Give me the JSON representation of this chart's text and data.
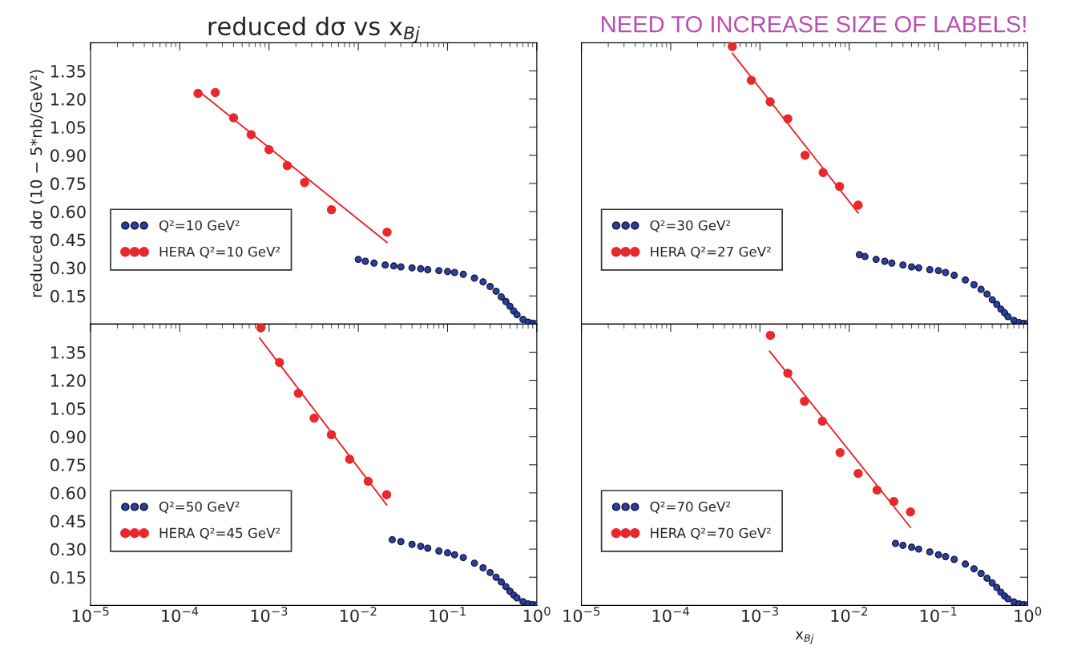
{
  "chart_data": [
    {
      "type": "scatter",
      "title": "reduced dσ vs x$_{Bj}$",
      "ylabel": "reduced dσ (10 − 5*nb/GeV²)",
      "tick_labels": "y",
      "legend": "left",
      "log": "x",
      "marker": "circle",
      "xlim": [
        1e-05,
        1
      ],
      "xticks": [
        {
          "value": 1e-05,
          "label": null
        },
        {
          "value": 0.0001,
          "label": null
        },
        {
          "value": 0.001,
          "label": null
        },
        {
          "value": 0.01,
          "label": null
        },
        {
          "value": 0.1,
          "label": null
        },
        {
          "value": 1,
          "label": null
        }
      ],
      "ylim": [
        0,
        1.5
      ],
      "yticks": [
        0.15,
        {
          "value": 0.3,
          "label": "0.30"
        },
        0.45,
        {
          "value": 0.6,
          "label": "0.60"
        },
        0.75,
        {
          "value": 0.9,
          "label": "0.90"
        },
        1.05,
        {
          "value": 1.2,
          "label": "1.20"
        },
        1.35
      ],
      "series": [
        {
          "name": "Q²=10 GeV²",
          "color": "#2b3f9c",
          "x": [
            0.01,
            0.012,
            0.015,
            0.02,
            0.025,
            0.03,
            0.04,
            0.05,
            0.06,
            0.08,
            0.1,
            0.12,
            0.15,
            0.2,
            0.25,
            0.3,
            0.35,
            0.4,
            0.45,
            0.5,
            0.55,
            0.6,
            0.7,
            0.8,
            0.9,
            1.0
          ],
          "values": [
            0.345,
            0.335,
            0.325,
            0.315,
            0.31,
            0.305,
            0.3,
            0.295,
            0.29,
            0.285,
            0.28,
            0.275,
            0.265,
            0.245,
            0.225,
            0.2,
            0.175,
            0.145,
            0.12,
            0.095,
            0.07,
            0.05,
            0.025,
            0.01,
            0.005,
            0.003
          ]
        },
        {
          "name": "HERA Q²=10 GeV²",
          "color": "#e8282b",
          "x": [
            0.00016,
            0.00025,
            0.0004,
            0.00063,
            0.001,
            0.0016,
            0.0025,
            0.005,
            0.021
          ],
          "values": [
            1.23,
            1.235,
            1.1,
            1.01,
            0.93,
            0.845,
            0.755,
            0.61,
            0.49
          ]
        },
        {
          "type": "line",
          "marker": "none",
          "color": "#e8282b",
          "x": [
            0.00017,
            0.021
          ],
          "values": [
            1.235,
            0.435
          ]
        }
      ]
    },
    {
      "type": "scatter",
      "tick_labels": false,
      "legend": "left",
      "log": "x",
      "marker": "circle",
      "annotations": [
        "NEED TO INCREASE SIZE OF LABELS!"
      ],
      "xlim": [
        1e-05,
        1
      ],
      "xticks": [
        {
          "value": 1e-05,
          "label": null
        },
        {
          "value": 0.0001,
          "label": null
        },
        {
          "value": 0.001,
          "label": null
        },
        {
          "value": 0.01,
          "label": null
        },
        {
          "value": 0.1,
          "label": null
        },
        {
          "value": 1,
          "label": null
        }
      ],
      "ylim": [
        0,
        1.5
      ],
      "yticks": [
        {
          "value": 0.15,
          "label": null
        },
        {
          "value": 0.3,
          "label": null
        },
        {
          "value": 0.45,
          "label": null
        },
        {
          "value": 0.6,
          "label": null
        },
        {
          "value": 0.75,
          "label": null
        },
        {
          "value": 0.9,
          "label": null
        },
        {
          "value": 1.05,
          "label": null
        },
        {
          "value": 1.2,
          "label": null
        },
        {
          "value": 1.35,
          "label": null
        }
      ],
      "series": [
        {
          "name": "Q²=30 GeV²",
          "color": "#2b3f9c",
          "x": [
            0.013,
            0.015,
            0.02,
            0.025,
            0.03,
            0.04,
            0.05,
            0.06,
            0.08,
            0.1,
            0.12,
            0.15,
            0.2,
            0.25,
            0.3,
            0.35,
            0.4,
            0.45,
            0.5,
            0.55,
            0.6,
            0.7,
            0.8,
            0.9,
            1.0
          ],
          "values": [
            0.37,
            0.36,
            0.345,
            0.335,
            0.325,
            0.315,
            0.305,
            0.3,
            0.29,
            0.285,
            0.275,
            0.26,
            0.235,
            0.21,
            0.185,
            0.16,
            0.13,
            0.105,
            0.08,
            0.06,
            0.04,
            0.02,
            0.008,
            0.004,
            0.003
          ]
        },
        {
          "name": "HERA Q²=27 GeV²",
          "color": "#e8282b",
          "x": [
            0.00049,
            0.0008,
            0.0013,
            0.00205,
            0.0032,
            0.0051,
            0.0078,
            0.0126
          ],
          "values": [
            1.48,
            1.3,
            1.185,
            1.095,
            0.9,
            0.808,
            0.734,
            0.634
          ]
        },
        {
          "type": "line",
          "marker": "none",
          "color": "#e8282b",
          "x": [
            0.00049,
            0.0126
          ],
          "values": [
            1.444,
            0.593
          ]
        }
      ]
    },
    {
      "type": "scatter",
      "legend": "left",
      "log": "x",
      "marker": "circle",
      "xlim": [
        1e-05,
        1
      ],
      "xticks": [
        {
          "value": 1e-05,
          "label": "10$^{−5}$"
        },
        {
          "value": 0.0001,
          "label": "10$^{−4}$"
        },
        {
          "value": 0.001,
          "label": "10$^{−3}$"
        },
        {
          "value": 0.01,
          "label": "10$^{−2}$"
        },
        {
          "value": 0.1,
          "label": "10$^{−1}$"
        },
        {
          "value": 1,
          "label": "10$^{0}$"
        }
      ],
      "ylim": [
        0,
        1.5
      ],
      "yticks": [
        0.15,
        {
          "value": 0.3,
          "label": "0.30"
        },
        0.45,
        {
          "value": 0.6,
          "label": "0.60"
        },
        0.75,
        {
          "value": 0.9,
          "label": "0.90"
        },
        1.05,
        {
          "value": 1.2,
          "label": "1.20"
        },
        1.35
      ],
      "series": [
        {
          "name": "Q²=50 GeV²",
          "color": "#2b3f9c",
          "x": [
            0.024,
            0.03,
            0.04,
            0.05,
            0.06,
            0.08,
            0.1,
            0.12,
            0.15,
            0.2,
            0.25,
            0.3,
            0.35,
            0.4,
            0.45,
            0.5,
            0.55,
            0.6,
            0.7,
            0.8,
            0.9,
            1.0
          ],
          "values": [
            0.35,
            0.34,
            0.325,
            0.315,
            0.305,
            0.29,
            0.28,
            0.27,
            0.255,
            0.225,
            0.2,
            0.175,
            0.15,
            0.125,
            0.1,
            0.075,
            0.055,
            0.04,
            0.02,
            0.008,
            0.004,
            0.003
          ]
        },
        {
          "name": "HERA Q²=45 GeV²",
          "color": "#e8282b",
          "x": [
            0.00081,
            0.00131,
            0.00213,
            0.0032,
            0.005,
            0.008,
            0.0129,
            0.0208
          ],
          "values": [
            1.48,
            1.295,
            1.131,
            0.998,
            0.91,
            0.779,
            0.662,
            0.59
          ]
        },
        {
          "type": "line",
          "marker": "none",
          "color": "#e8282b",
          "x": [
            0.000785,
            0.0208
          ],
          "values": [
            1.425,
            0.536
          ]
        }
      ]
    },
    {
      "type": "scatter",
      "xlabel": "x$_{Bj}$",
      "tick_labels": "x",
      "legend": "left",
      "log": "x",
      "marker": "circle",
      "xlim": [
        1e-05,
        1
      ],
      "xticks": [
        {
          "value": 1e-05,
          "label": "10$^{−5}$"
        },
        {
          "value": 0.0001,
          "label": "10$^{−4}$"
        },
        {
          "value": 0.001,
          "label": "10$^{−3}$"
        },
        {
          "value": 0.01,
          "label": "10$^{−2}$"
        },
        {
          "value": 0.1,
          "label": "10$^{−1}$"
        },
        {
          "value": 1,
          "label": "10$^{0}$"
        }
      ],
      "ylim": [
        0,
        1.5
      ],
      "yticks": [
        {
          "value": 0.15,
          "label": null
        },
        {
          "value": 0.3,
          "label": null
        },
        {
          "value": 0.45,
          "label": null
        },
        {
          "value": 0.6,
          "label": null
        },
        {
          "value": 0.75,
          "label": null
        },
        {
          "value": 0.9,
          "label": null
        },
        {
          "value": 1.05,
          "label": null
        },
        {
          "value": 1.2,
          "label": null
        },
        {
          "value": 1.35,
          "label": null
        }
      ],
      "series": [
        {
          "name": "Q²=70 GeV²",
          "color": "#2b3f9c",
          "x": [
            0.033,
            0.04,
            0.05,
            0.06,
            0.08,
            0.1,
            0.12,
            0.15,
            0.2,
            0.25,
            0.3,
            0.35,
            0.4,
            0.45,
            0.5,
            0.55,
            0.6,
            0.7,
            0.8,
            0.9,
            1.0
          ],
          "values": [
            0.33,
            0.32,
            0.31,
            0.3,
            0.285,
            0.27,
            0.26,
            0.245,
            0.22,
            0.195,
            0.17,
            0.145,
            0.12,
            0.095,
            0.07,
            0.05,
            0.035,
            0.018,
            0.008,
            0.004,
            0.003
          ]
        },
        {
          "name": "HERA Q²=70 GeV²",
          "color": "#e8282b",
          "x": [
            0.00131,
            0.00205,
            0.00315,
            0.005,
            0.0079,
            0.0126,
            0.0205,
            0.0316,
            0.0486
          ],
          "values": [
            1.44,
            1.238,
            1.088,
            0.982,
            0.815,
            0.703,
            0.615,
            0.554,
            0.498
          ]
        },
        {
          "type": "line",
          "marker": "none",
          "color": "#e8282b",
          "x": [
            0.00128,
            0.0486
          ],
          "values": [
            1.356,
            0.416
          ]
        }
      ]
    }
  ]
}
